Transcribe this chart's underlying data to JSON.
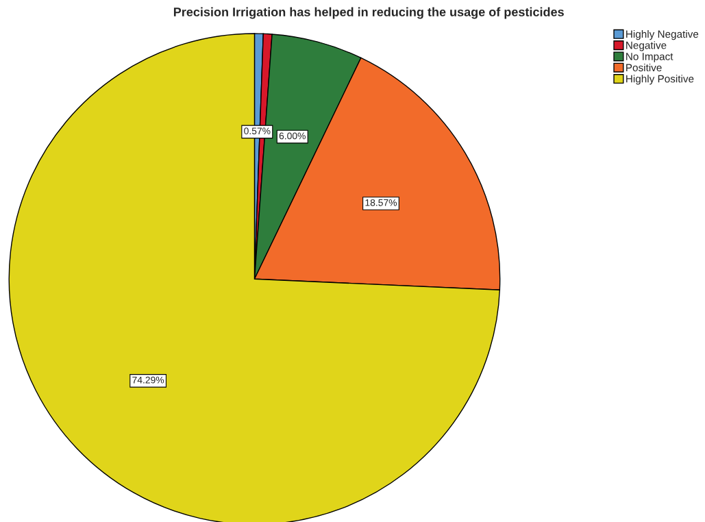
{
  "chart_data": {
    "type": "pie",
    "title": "Precision Irrigation has helped in reducing the usage of pesticides",
    "categories": [
      "Highly Negative",
      "Negative",
      "No Impact",
      "Positive",
      "Highly Positive"
    ],
    "values": [
      0.57,
      0.57,
      6.0,
      18.57,
      74.29
    ],
    "colors": [
      "#5b9bd5",
      "#d7182a",
      "#2e7d3c",
      "#f26b2a",
      "#e0d51a"
    ],
    "value_labels": [
      "0.57%",
      null,
      "6.00%",
      "18.57%",
      "74.29%"
    ],
    "legend": "top right"
  }
}
